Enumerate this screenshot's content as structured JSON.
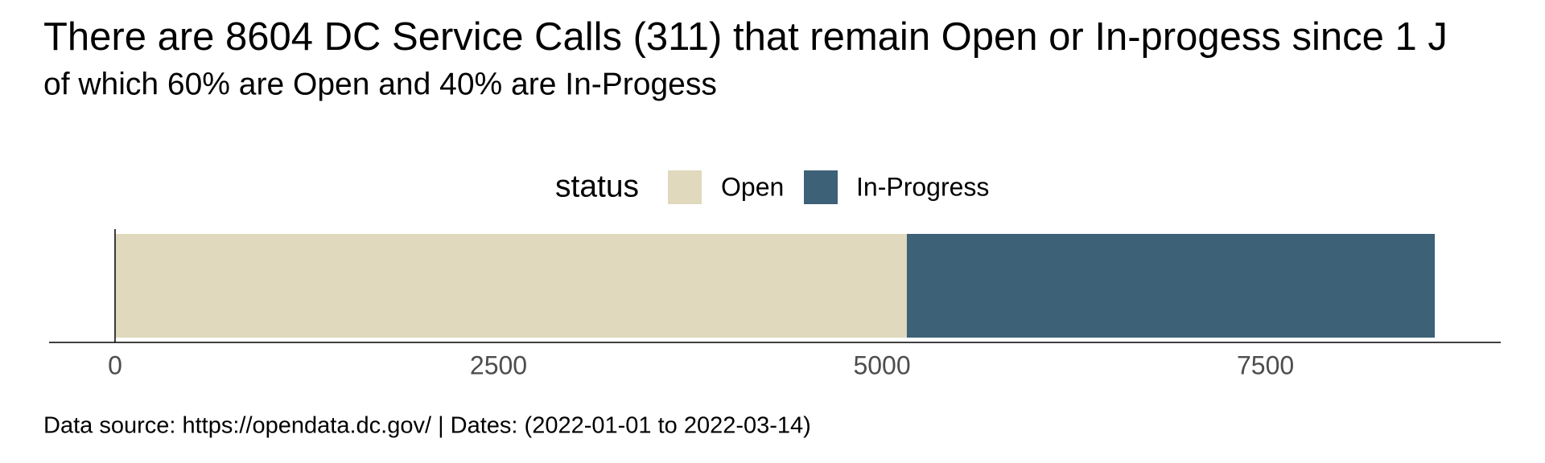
{
  "chart_data": {
    "type": "bar",
    "orientation": "horizontal",
    "stacked": true,
    "title": "There are 8604 DC Service Calls (311) that remain Open or In-progess since 1 J",
    "subtitle": "of which 60% are Open and 40% are In-Progess",
    "caption": "Data source: https://opendata.dc.gov/ | Dates: (2022-01-01 to 2022-03-14)",
    "legend_title": "status",
    "legend_position": "top",
    "series": [
      {
        "name": "Open",
        "color": "#e0d9bd",
        "values": [
          5162
        ]
      },
      {
        "name": "In-Progress",
        "color": "#3d6176",
        "values": [
          3442
        ]
      }
    ],
    "xlim": [
      -430,
      9034
    ],
    "xticks": [
      0,
      2500,
      5000,
      7500
    ],
    "grid": false
  }
}
